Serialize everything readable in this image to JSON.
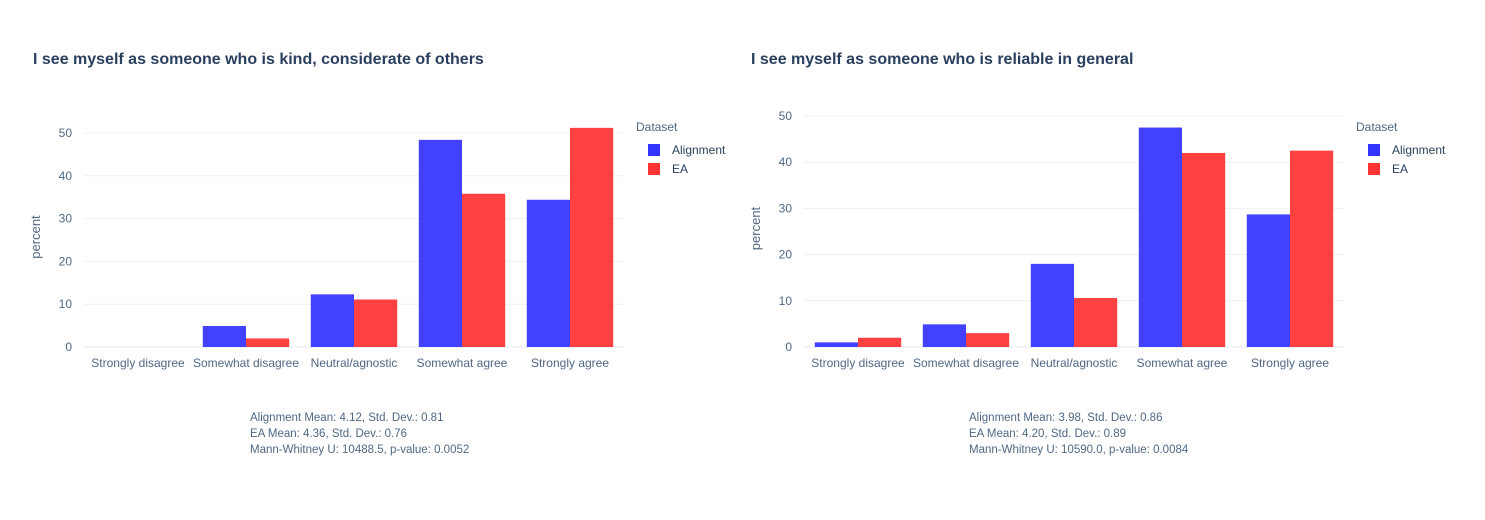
{
  "legend_title": "Dataset",
  "chart_data": [
    {
      "type": "bar",
      "title": "I see myself as someone who is kind, considerate of others",
      "xlabel": "",
      "ylabel": "percent",
      "ylim": [
        0,
        55
      ],
      "yticks": [
        0,
        10,
        20,
        30,
        40,
        50
      ],
      "categories": [
        "Strongly disagree",
        "Somewhat disagree",
        "Neutral/agnostic",
        "Somewhat agree",
        "Strongly agree"
      ],
      "series": [
        {
          "name": "Alignment",
          "color": "#3333ff",
          "values": [
            0,
            4.9,
            12.3,
            48.4,
            34.4
          ]
        },
        {
          "name": "EA",
          "color": "#ff3333",
          "values": [
            0,
            2.0,
            11.1,
            35.8,
            51.2
          ]
        }
      ],
      "grid": true,
      "legend_position": "top-right",
      "annotations": [
        "Alignment Mean: 4.12, Std. Dev.: 0.81",
        "EA Mean: 4.36, Std. Dev.: 0.76",
        "Mann-Whitney U: 10488.5, p-value: 0.0052"
      ]
    },
    {
      "type": "bar",
      "title": "I see myself as someone who is reliable in general",
      "xlabel": "",
      "ylabel": "percent",
      "ylim": [
        0,
        50
      ],
      "yticks": [
        0,
        10,
        20,
        30,
        40,
        50
      ],
      "categories": [
        "Strongly disagree",
        "Somewhat disagree",
        "Neutral/agnostic",
        "Somewhat agree",
        "Strongly agree"
      ],
      "series": [
        {
          "name": "Alignment",
          "color": "#3333ff",
          "values": [
            1.0,
            4.9,
            18.0,
            47.5,
            28.7
          ]
        },
        {
          "name": "EA",
          "color": "#ff3333",
          "values": [
            2.0,
            3.0,
            10.6,
            42.0,
            42.5
          ]
        }
      ],
      "grid": true,
      "legend_position": "top-right",
      "annotations": [
        "Alignment Mean: 3.98, Std. Dev.: 0.86",
        "EA Mean: 4.20, Std. Dev.: 0.89",
        "Mann-Whitney U: 10590.0, p-value: 0.0084"
      ]
    }
  ]
}
